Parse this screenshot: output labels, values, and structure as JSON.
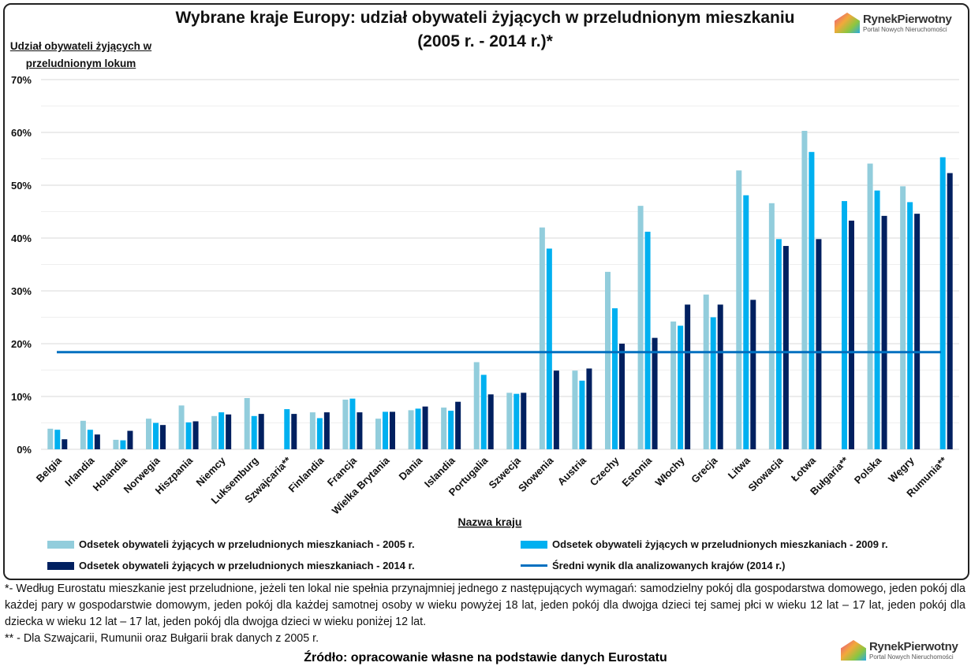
{
  "chart_data": {
    "type": "bar",
    "title": "Wybrane kraje Europy: udział obywateli żyjących w przeludnionym mieszkaniu (2005 r. - 2014 r.)*",
    "ylabel": "Udział obywateli żyjących w przeludnionym lokum",
    "xlabel": "Nazwa kraju",
    "ylim": [
      0,
      70
    ],
    "yticks": [
      "0%",
      "10%",
      "20%",
      "30%",
      "40%",
      "50%",
      "60%",
      "70%"
    ],
    "grid": true,
    "legend_position": "bottom",
    "categories": [
      "Belgia",
      "Irlandia",
      "Holandia",
      "Norwegia",
      "Hiszpania",
      "Niemcy",
      "Luksemburg",
      "Szwajcaria**",
      "Finlandia",
      "Francja",
      "Wielka Brytania",
      "Dania",
      "Islandia",
      "Portugalia",
      "Szwecja",
      "Słowenia",
      "Austria",
      "Czechy",
      "Estonia",
      "Włochy",
      "Grecja",
      "Litwa",
      "Słowacja",
      "Łotwa",
      "Bułgaria**",
      "Polska",
      "Węgry",
      "Rumunia**"
    ],
    "series": [
      {
        "name": "Odsetek obywateli żyjących w przeludnionych mieszkaniach - 2005 r.",
        "color": "#92cddc",
        "values": [
          3.9,
          5.4,
          1.8,
          5.8,
          8.3,
          6.3,
          9.7,
          null,
          7.0,
          9.4,
          5.8,
          7.4,
          7.9,
          16.5,
          10.7,
          42.0,
          14.9,
          33.6,
          46.1,
          24.2,
          29.3,
          52.8,
          46.6,
          60.3,
          null,
          54.1,
          49.8,
          null
        ]
      },
      {
        "name": "Odsetek obywateli żyjących w przeludnionych mieszkaniach - 2009 r.",
        "color": "#00b0f0",
        "values": [
          3.7,
          3.7,
          1.7,
          5.0,
          5.1,
          7.0,
          6.3,
          7.6,
          5.9,
          9.6,
          7.1,
          7.7,
          7.3,
          14.1,
          10.5,
          38.0,
          13.0,
          26.7,
          41.2,
          23.4,
          25.0,
          48.1,
          39.8,
          56.3,
          47.0,
          49.0,
          46.8,
          55.3
        ]
      },
      {
        "name": "Odsetek obywateli żyjących w przeludnionych mieszkaniach - 2014 r.",
        "color": "#002060",
        "values": [
          1.9,
          2.8,
          3.5,
          4.6,
          5.3,
          6.6,
          6.7,
          6.7,
          7.0,
          7.0,
          7.1,
          8.1,
          9.0,
          10.4,
          10.7,
          14.9,
          15.3,
          20.0,
          21.1,
          27.4,
          27.4,
          28.3,
          38.5,
          39.8,
          43.3,
          44.2,
          44.6,
          52.3
        ]
      }
    ],
    "reference_line": {
      "name": "Średni wynik dla analizowanych krajów (2014 r.)",
      "value": 18.4,
      "color": "#0070c0"
    }
  },
  "title_line1": "Wybrane kraje Europy: udział obywateli żyjących w przeludnionym mieszkaniu",
  "title_line2": "(2005 r. - 2014 r.)*",
  "ylabel_line1": "Udział obywateli żyjących w",
  "ylabel_line2": "przeludnionym lokum",
  "logo": {
    "name": "RynekPierwotny",
    "sub": "Portal Nowych Nieruchomości"
  },
  "notes": {
    "note1": "*- Według Eurostatu mieszkanie jest przeludnione, jeżeli ten lokal nie spełnia przynajmniej jednego z następujących wymagań: samodzielny pokój dla gospodarstwa domowego, jeden pokój dla każdej pary w gospodarstwie domowym, jeden pokój dla każdej samotnej osoby w wieku powyżej 18 lat, jeden pokój dla dwojga dzieci tej samej płci w wieku 12 lat – 17 lat, jeden pokój dla dziecka w wieku 12 lat – 17 lat, jeden pokój dla dwojga dzieci w wieku poniżej 12 lat.",
    "note2": "** - Dla Szwajcarii, Rumunii oraz Bułgarii brak danych z 2005 r."
  },
  "source": "Źródło: opracowanie własne na podstawie danych Eurostatu"
}
